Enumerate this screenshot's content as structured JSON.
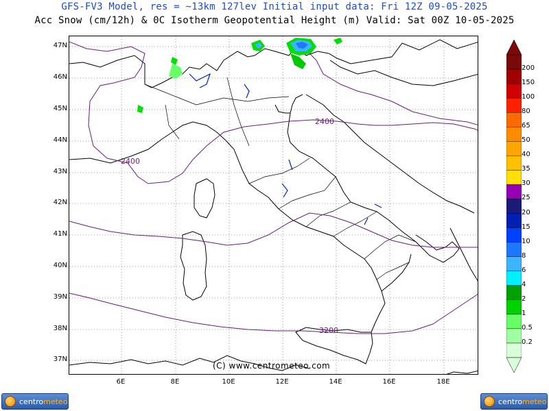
{
  "title": {
    "line1": "GFS-FV3 Model, res = ~13km 127lev   Initial input data: Fri 12Z 09-05-2025",
    "line2": "Acc Snow (cm/12h) & 0C Isotherm Geopotential Height (m)  Valid: Sat 00Z 10-05-2025"
  },
  "axes": {
    "latitude_labels": [
      "47N",
      "46N",
      "45N",
      "44N",
      "43N",
      "42N",
      "41N",
      "40N",
      "39N",
      "38N",
      "37N"
    ],
    "longitude_labels": [
      "6E",
      "8E",
      "10E",
      "12E",
      "14E",
      "16E",
      "18E"
    ]
  },
  "contours": {
    "labels": [
      "2400",
      "2400",
      "3200"
    ],
    "color": "#6a1b7a"
  },
  "colorbar": {
    "labels": [
      "200",
      "150",
      "100",
      "80",
      "65",
      "50",
      "40",
      "35",
      "30",
      "25",
      "20",
      "15",
      "10",
      "8",
      "6",
      "4",
      "2",
      "1",
      "0.5",
      "0.2"
    ],
    "colors": [
      "#7a0a0a",
      "#a00000",
      "#d00000",
      "#ff2000",
      "#ff6a00",
      "#ff8c00",
      "#ffa500",
      "#ffc000",
      "#ffe000",
      "#9600b4",
      "#1a1a78",
      "#0020b4",
      "#0040ff",
      "#1e78ff",
      "#3cb4ff",
      "#00f0ff",
      "#00a000",
      "#00d200",
      "#66ff66",
      "#a0ffa0",
      "#d8ffd8"
    ]
  },
  "copyright": "(C) www.centrometeo.com",
  "logos": {
    "left": {
      "text_a": "centro",
      "text_b": "meteo"
    },
    "right": {
      "text_a": "centro",
      "text_b": "meteo"
    }
  }
}
